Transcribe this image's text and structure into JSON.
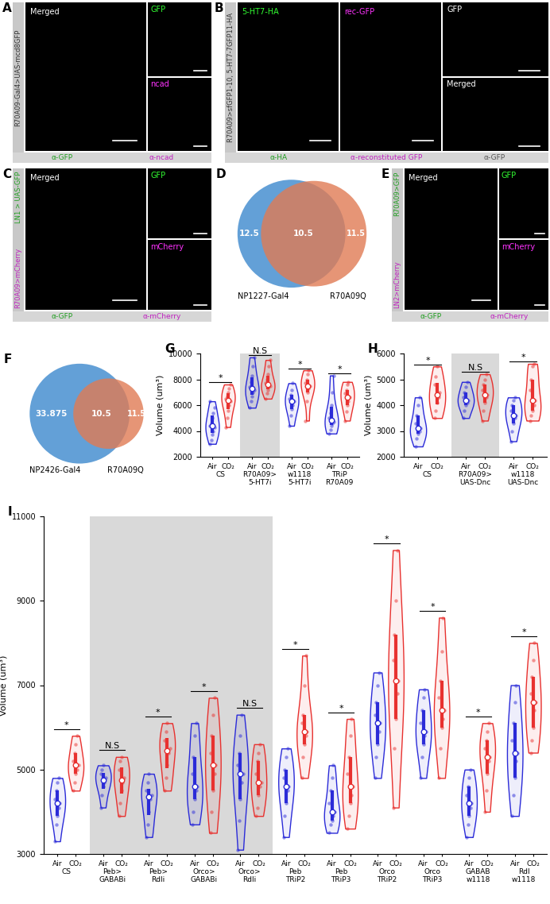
{
  "images": [
    {
      "label": "A",
      "side_labels": [
        {
          "text": "R70A09-Gal4>UAS-mcd8GFP",
          "color": "#333333"
        }
      ],
      "tiles": [
        {
          "name": "Merged",
          "color": "#ffffff"
        },
        {
          "name": "GFP",
          "color": "#33ff33"
        },
        {
          "name": "ncad",
          "color": "#ff33ff"
        }
      ],
      "captions": [
        {
          "text": "α-GFP",
          "color": "#1f9e1f"
        },
        {
          "text": "α-ncad",
          "color": "#c020c0"
        }
      ]
    },
    {
      "label": "B",
      "side_labels": [
        {
          "text": "R70A09>sfGFP1-10, 5-HT7-7GFP11-HA",
          "color": "#333333"
        }
      ],
      "tiles": [
        {
          "name": "5-HT7-HA",
          "color": "#33ff33"
        },
        {
          "name": "rec-GFP",
          "color": "#ff33ff"
        },
        {
          "name": "GFP",
          "color": "#ffffff"
        },
        {
          "name": "Merged",
          "color": "#ffffff"
        }
      ],
      "captions": [
        {
          "text": "α-HA",
          "color": "#1f9e1f"
        },
        {
          "text": "α-reconstituted GFP",
          "color": "#c020c0"
        },
        {
          "text": "α-GFP",
          "color": "#555555"
        }
      ]
    },
    {
      "label": "C",
      "side_labels": [
        {
          "text": "R70A09>mCherry",
          "color": "#c020c0"
        },
        {
          "text": "LN1 > UAS-GFP",
          "color": "#1f9e1f"
        }
      ],
      "tiles": [
        {
          "name": "Merged",
          "color": "#ffffff"
        },
        {
          "name": "GFP",
          "color": "#33ff33"
        },
        {
          "name": "mCherry",
          "color": "#ff33ff"
        }
      ],
      "captions": [
        {
          "text": "α-GFP",
          "color": "#1f9e1f"
        },
        {
          "text": "α-mCherry",
          "color": "#c020c0"
        }
      ]
    },
    {
      "label": "E",
      "side_labels": [
        {
          "text": "LN2>mCherry",
          "color": "#c020c0"
        },
        {
          "text": "R70A09>GFP",
          "color": "#1f9e1f"
        }
      ],
      "tiles": [
        {
          "name": "Merged",
          "color": "#ffffff"
        },
        {
          "name": "GFP",
          "color": "#33ff33"
        },
        {
          "name": "mCherry",
          "color": "#ff33ff"
        }
      ],
      "captions": [
        {
          "text": "α-GFP",
          "color": "#1f9e1f"
        },
        {
          "text": "α-mCherry",
          "color": "#c020c0"
        }
      ]
    }
  ],
  "chart_data": [
    {
      "type": "venn",
      "label": "D",
      "overlap": 10.5,
      "sets": [
        {
          "name": "NP1227-Gal4",
          "color": "#5b9bd5",
          "value": 12.5
        },
        {
          "name": "R70A09Q",
          "color": "#e07b54",
          "value": 11.5
        }
      ]
    },
    {
      "type": "venn",
      "label": "F",
      "overlap": 10.5,
      "sets": [
        {
          "name": "NP2426-Gal4",
          "color": "#5b9bd5",
          "value": 33.875
        },
        {
          "name": "R70A09Q",
          "color": "#e07b54",
          "value": 11.5
        }
      ]
    },
    {
      "type": "violin",
      "label": "G",
      "ylabel": "Volume (um³)",
      "ylim": [
        2000,
        10000
      ],
      "yticks": [
        2000,
        4000,
        6000,
        8000,
        10000
      ],
      "conditions": [
        {
          "name": "Air",
          "color": "#2b2bd8"
        },
        {
          "name": "CO₂",
          "color": "#e8312f"
        }
      ],
      "groups": [
        {
          "name": "CS",
          "significance": "*",
          "values": [
            [
              3000,
              3300,
              3700,
              4000,
              4300,
              4400,
              4600,
              5000,
              5400,
              5800,
              6300
            ],
            [
              4300,
              5000,
              5600,
              6000,
              6300,
              6500,
              6700,
              7000,
              7300,
              7600
            ]
          ]
        },
        {
          "name": "R70A09>\n5-HT7i",
          "significance": "N.S",
          "color": "#d9d9d9",
          "values": [
            [
              5800,
              6300,
              6700,
              7000,
              7200,
              7400,
              7800,
              8300,
              9000,
              9700
            ],
            [
              6500,
              6900,
              7200,
              7400,
              7500,
              7700,
              8000,
              8400,
              9000,
              9500
            ]
          ]
        },
        {
          "name": "w1118\n5-HT7i",
          "significance": "*",
          "values": [
            [
              4400,
              5200,
              5700,
              6000,
              6300,
              6500,
              6800,
              7200,
              7700
            ],
            [
              4800,
              6300,
              7000,
              7300,
              7500,
              7700,
              8000,
              8400,
              8700
            ]
          ]
        },
        {
          "name": "TRiP\nR70A09",
          "significance": "*",
          "values": [
            [
              3800,
              4100,
              4400,
              4600,
              4700,
              5000,
              5400,
              6000,
              7000,
              8300
            ],
            [
              4800,
              5500,
              6000,
              6300,
              6600,
              6900,
              7200,
              7600,
              7800
            ]
          ]
        }
      ]
    },
    {
      "type": "violin",
      "label": "H",
      "ylabel": "Volume (um³)",
      "ylim": [
        2000,
        6000
      ],
      "yticks": [
        2000,
        3000,
        4000,
        5000,
        6000
      ],
      "conditions": [
        {
          "name": "Air",
          "color": "#2b2bd8"
        },
        {
          "name": "CO₂",
          "color": "#e8312f"
        }
      ],
      "groups": [
        {
          "name": "CS",
          "significance": "*",
          "values": [
            [
              2400,
              2700,
              2900,
              3000,
              3100,
              3300,
              3600,
              4000,
              4300
            ],
            [
              3500,
              3800,
              4100,
              4300,
              4500,
              4800,
              5100,
              5500
            ]
          ]
        },
        {
          "name": "R70A09>\nUAS-Dnc",
          "significance": "N.S",
          "color": "#d9d9d9",
          "values": [
            [
              3500,
              3800,
              4000,
              4100,
              4200,
              4300,
              4500,
              4700,
              4900
            ],
            [
              3400,
              3800,
              4100,
              4300,
              4400,
              4600,
              4800,
              5000,
              5200
            ]
          ]
        },
        {
          "name": "w1118\nUAS-Dnc",
          "significance": "*",
          "values": [
            [
              2600,
              3000,
              3300,
              3500,
              3600,
              3800,
              4000,
              4200,
              4300
            ],
            [
              3400,
              3600,
              3800,
              4000,
              4200,
              4600,
              5000,
              5500,
              5600
            ]
          ]
        }
      ]
    },
    {
      "type": "violin",
      "label": "I",
      "ylabel": "Volume (um³)",
      "ylim": [
        3000,
        11000
      ],
      "yticks": [
        3000,
        5000,
        7000,
        9000,
        11000
      ],
      "conditions": [
        {
          "name": "Air",
          "color": "#2b2bd8"
        },
        {
          "name": "CO₂",
          "color": "#e8312f"
        }
      ],
      "groups": [
        {
          "name": "CS",
          "significance": "*",
          "values": [
            [
              3300,
              3700,
              3900,
              4100,
              4200,
              4300,
              4500,
              4700,
              4800
            ],
            [
              4500,
              4700,
              4900,
              5000,
              5100,
              5200,
              5400,
              5600,
              5800
            ]
          ]
        },
        {
          "name": "Peb>\nGABABi",
          "significance": "N.S",
          "color": "#d9d9d9",
          "values": [
            [
              4100,
              4400,
              4600,
              4700,
              4800,
              4900,
              5000,
              5100
            ],
            [
              3900,
              4200,
              4500,
              4700,
              4800,
              5000,
              5200,
              5300
            ]
          ]
        },
        {
          "name": "Peb>\nRdli",
          "significance": "*",
          "color": "#d9d9d9",
          "values": [
            [
              3400,
              3700,
              4000,
              4300,
              4400,
              4500,
              4700,
              4900
            ],
            [
              4500,
              4800,
              5100,
              5400,
              5500,
              5700,
              5900,
              6100
            ]
          ]
        },
        {
          "name": "Orco>\nGABABi",
          "significance": "*",
          "color": "#d9d9d9",
          "values": [
            [
              3700,
              4000,
              4300,
              4500,
              4600,
              4900,
              5300,
              5800,
              6100
            ],
            [
              3500,
              4000,
              4500,
              4900,
              5100,
              5400,
              5800,
              6300,
              6700
            ]
          ]
        },
        {
          "name": "Orco>\nRdli",
          "significance": "N.S",
          "color": "#d9d9d9",
          "values": [
            [
              3100,
              3800,
              4300,
              4700,
              4900,
              5100,
              5400,
              5800,
              6300
            ],
            [
              3900,
              4100,
              4400,
              4600,
              4700,
              4900,
              5200,
              5400,
              5600
            ]
          ]
        },
        {
          "name": "Peb\nTRiP2",
          "significance": "*",
          "values": [
            [
              3400,
              3900,
              4200,
              4500,
              4600,
              4800,
              5000,
              5300,
              5500
            ],
            [
              4800,
              5300,
              5600,
              5800,
              5900,
              6100,
              6300,
              7000,
              7700
            ]
          ]
        },
        {
          "name": "Peb\nTRiP3",
          "significance": "*",
          "values": [
            [
              3500,
              3700,
              3800,
              3900,
              4000,
              4200,
              4500,
              4800,
              5100
            ],
            [
              3600,
              3900,
              4200,
              4400,
              4600,
              4900,
              5300,
              5800,
              6200
            ]
          ]
        },
        {
          "name": "Orco\nTRiP2",
          "significance": "*",
          "values": [
            [
              4800,
              5300,
              5600,
              5900,
              6100,
              6300,
              6600,
              7000,
              7300
            ],
            [
              4100,
              5500,
              6200,
              6800,
              7100,
              7600,
              8200,
              9000,
              10200
            ]
          ]
        },
        {
          "name": "Orco\nTRiP3",
          "significance": "*",
          "values": [
            [
              4800,
              5300,
              5600,
              5800,
              5900,
              6100,
              6400,
              6700,
              6900
            ],
            [
              4800,
              5500,
              6000,
              6200,
              6400,
              6700,
              7100,
              7800,
              8600
            ]
          ]
        },
        {
          "name": "GABAB\nw1118",
          "significance": "*",
          "values": [
            [
              3400,
              3700,
              3900,
              4100,
              4200,
              4400,
              4600,
              4800,
              5000
            ],
            [
              4000,
              4500,
              4900,
              5200,
              5300,
              5500,
              5700,
              5900,
              6100
            ]
          ]
        },
        {
          "name": "Rdl\nw1118",
          "significance": "*",
          "values": [
            [
              3900,
              4400,
              4800,
              5200,
              5400,
              5700,
              6100,
              6600,
              7000
            ],
            [
              5400,
              5700,
              6000,
              6400,
              6600,
              6800,
              7200,
              7600,
              8000
            ]
          ]
        }
      ]
    }
  ]
}
